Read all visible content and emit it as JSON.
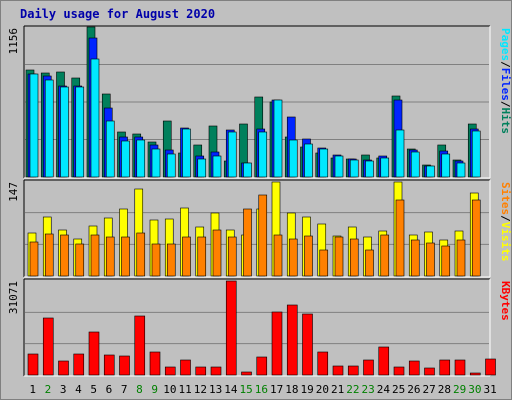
{
  "title": "Daily usage for August 2020",
  "colors": {
    "hits": "#00805c",
    "files": "#0024ff",
    "pages": "#00e8ff",
    "visits": "#ffff00",
    "sites": "#ff8000",
    "kbytes": "#ff0000",
    "day_normal": "#000000",
    "day_weekend": "#008000",
    "panel_bg": "#c0c0c0",
    "grid": "#808080"
  },
  "chart_data": [
    {
      "type": "bar",
      "panel": "pages-files-hits",
      "label_parts": [
        {
          "text": "Pages",
          "color": "#00e8ff"
        },
        {
          "text": "/",
          "color": "#000000"
        },
        {
          "text": "Files",
          "color": "#0024ff"
        },
        {
          "text": "/",
          "color": "#000000"
        },
        {
          "text": "Hits",
          "color": "#00805c"
        }
      ],
      "ymax_label": "1156",
      "ylim": [
        0,
        1156
      ],
      "categories": [
        "1",
        "2",
        "3",
        "4",
        "5",
        "6",
        "7",
        "8",
        "9",
        "10",
        "11",
        "12",
        "13",
        "14",
        "15",
        "16",
        "17",
        "18",
        "19",
        "20",
        "21",
        "22",
        "23",
        "24",
        "25",
        "26",
        "27",
        "28",
        "29",
        "30",
        "31"
      ],
      "weekend_days": [
        "2",
        "8",
        "9",
        "15",
        "16",
        "22",
        "23",
        "29",
        "30"
      ],
      "series": [
        {
          "name": "Hits",
          "values": [
            825,
            805,
            808,
            760,
            1156,
            638,
            345,
            333,
            270,
            430,
            183,
            245,
            395,
            120,
            410,
            615,
            580,
            305,
            232,
            183,
            150,
            140,
            170,
            145,
            625,
            215,
            95,
            245,
            130,
            410,
            0
          ]
        },
        {
          "name": "Files",
          "values": [
            790,
            775,
            705,
            705,
            1075,
            535,
            305,
            305,
            245,
            210,
            380,
            160,
            195,
            360,
            110,
            370,
            595,
            460,
            295,
            222,
            168,
            140,
            130,
            160,
            595,
            205,
            88,
            200,
            120,
            370,
            0
          ]
        },
        {
          "name": "Pages",
          "values": [
            795,
            745,
            690,
            693,
            913,
            435,
            280,
            285,
            215,
            180,
            370,
            140,
            160,
            345,
            110,
            350,
            590,
            285,
            258,
            213,
            160,
            130,
            120,
            145,
            365,
            195,
            82,
            175,
            110,
            355,
            0
          ]
        }
      ]
    },
    {
      "type": "bar",
      "panel": "sites-visits",
      "label_parts": [
        {
          "text": "Sites",
          "color": "#ff8000"
        },
        {
          "text": "/",
          "color": "#000000"
        },
        {
          "text": "Visits",
          "color": "#ffff00"
        }
      ],
      "ymax_label": "147",
      "ylim": [
        0,
        147
      ],
      "categories": [
        "1",
        "2",
        "3",
        "4",
        "5",
        "6",
        "7",
        "8",
        "9",
        "10",
        "11",
        "12",
        "13",
        "14",
        "15",
        "16",
        "17",
        "18",
        "19",
        "20",
        "21",
        "22",
        "23",
        "24",
        "25",
        "26",
        "27",
        "28",
        "29",
        "30",
        "31"
      ],
      "series": [
        {
          "name": "Visits",
          "values": [
            67,
            92,
            71,
            58,
            78,
            90,
            103,
            135,
            87,
            88,
            105,
            76,
            98,
            71,
            63,
            104,
            145,
            98,
            92,
            80,
            62,
            76,
            61,
            70,
            145,
            64,
            68,
            56,
            69,
            128,
            0
          ]
        },
        {
          "name": "Sites",
          "values": [
            52,
            65,
            63,
            49,
            64,
            60,
            61,
            66,
            49,
            49,
            61,
            60,
            71,
            60,
            104,
            126,
            64,
            57,
            62,
            40,
            60,
            57,
            40,
            63,
            118,
            56,
            51,
            47,
            56,
            118,
            0
          ]
        }
      ]
    },
    {
      "type": "bar",
      "panel": "kbytes",
      "label_parts": [
        {
          "text": "KBytes",
          "color": "#ff0000"
        }
      ],
      "ymax_label": "31071",
      "ylim": [
        0,
        31071
      ],
      "categories": [
        "1",
        "2",
        "3",
        "4",
        "5",
        "6",
        "7",
        "8",
        "9",
        "10",
        "11",
        "12",
        "13",
        "14",
        "15",
        "16",
        "17",
        "18",
        "19",
        "20",
        "21",
        "22",
        "23",
        "24",
        "25",
        "26",
        "27",
        "28",
        "29",
        "30",
        "31"
      ],
      "series": [
        {
          "name": "KBytes",
          "values": [
            7000,
            18800,
            4600,
            7000,
            14300,
            6700,
            6400,
            19400,
            7600,
            2500,
            4800,
            2700,
            2700,
            31071,
            900,
            5800,
            20700,
            23000,
            20300,
            7600,
            3000,
            3000,
            4800,
            9100,
            2500,
            4600,
            2200,
            5000,
            5000,
            700,
            5400
          ]
        }
      ]
    }
  ]
}
